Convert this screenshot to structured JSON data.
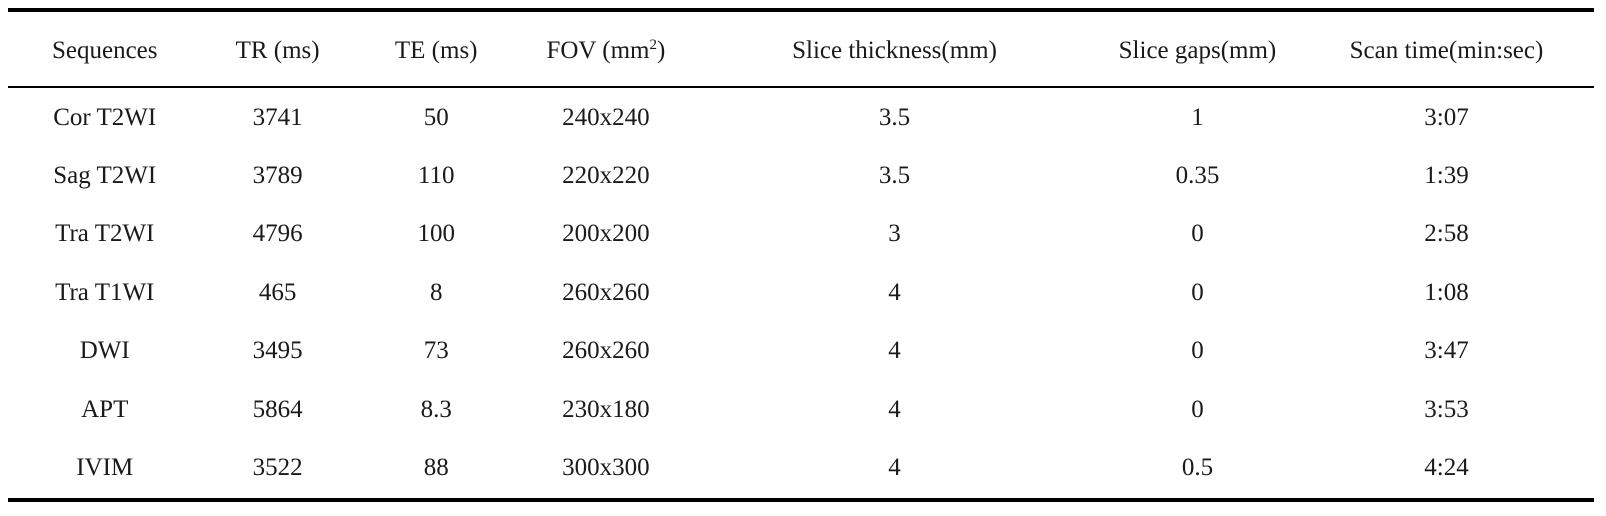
{
  "table": {
    "headers": [
      {
        "text": "Sequences"
      },
      {
        "text": "TR (ms)"
      },
      {
        "text": "TE (ms)"
      },
      {
        "text": "FOV (mm",
        "sup": "2",
        "suffix": ")"
      },
      {
        "text": "Slice thickness(mm)"
      },
      {
        "text": "Slice gaps(mm)"
      },
      {
        "text": "Scan time(min:sec)"
      }
    ],
    "rows": [
      [
        "Cor T2WI",
        "3741",
        "50",
        "240x240",
        "3.5",
        "1",
        "3:07"
      ],
      [
        "Sag T2WI",
        "3789",
        "110",
        "220x220",
        "3.5",
        "0.35",
        "1:39"
      ],
      [
        "Tra T2WI",
        "4796",
        "100",
        "200x200",
        "3",
        "0",
        "2:58"
      ],
      [
        "Tra T1WI",
        "465",
        "8",
        "260x260",
        "4",
        "0",
        "1:08"
      ],
      [
        "DWI",
        "3495",
        "73",
        "260x260",
        "4",
        "0",
        "3:47"
      ],
      [
        "APT",
        "5864",
        "8.3",
        "230x180",
        "4",
        "0",
        "3:53"
      ],
      [
        "IVIM",
        "3522",
        "88",
        "300x300",
        "4",
        "0.5",
        "4:24"
      ]
    ]
  }
}
